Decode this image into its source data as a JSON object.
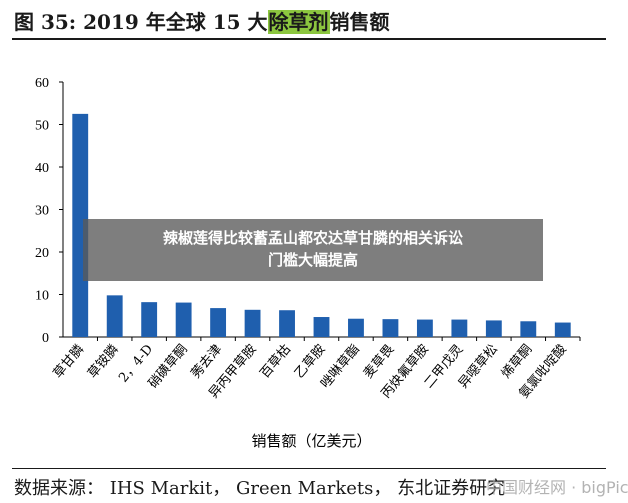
{
  "header": {
    "title_pre": "图 35:  2019 年全球 15 大",
    "title_hl": "除草剂",
    "title_post": "销售额"
  },
  "chart_data": {
    "type": "bar",
    "categories": [
      "草甘膦",
      "草铵膦",
      "2，4-D",
      "硝磺草酮",
      "莠去津",
      "异丙甲草胺",
      "百草枯",
      "乙草胺",
      "唑啉草酯",
      "麦草畏",
      "丙炔氟草胺",
      "二甲戊灵",
      "异噁草松",
      "烯草酮",
      "氨氯吡啶酸"
    ],
    "values": [
      52.5,
      9.8,
      8.2,
      8.1,
      6.8,
      6.4,
      6.3,
      4.7,
      4.3,
      4.2,
      4.1,
      4.1,
      3.9,
      3.7,
      3.4
    ],
    "xlabel": "销售额（亿美元）",
    "ylabel": "",
    "ylim": [
      0,
      60
    ],
    "yticks": [
      "0",
      "10",
      "20",
      "30",
      "40",
      "50",
      "60"
    ],
    "bar_color": "#1f5fae",
    "grid": false
  },
  "footer": {
    "source": "数据来源：  IHS Markit，  Green Markets，  东北证券研究"
  },
  "overlay": {
    "line1": "辣椒莲得比较蓄孟山都农达草甘膦的相关诉讼",
    "line2": "门槛大幅提高"
  },
  "watermark": "中国财经网 · bigPic"
}
